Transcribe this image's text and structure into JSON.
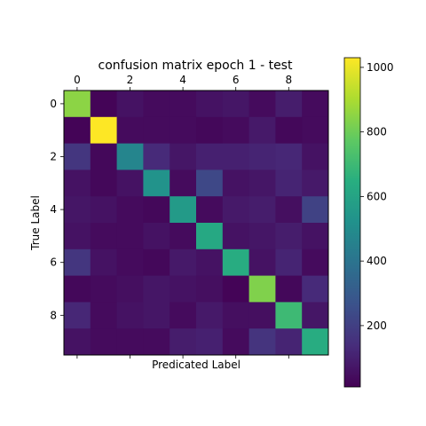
{
  "chart_data": {
    "type": "heatmap",
    "title": "confusion matrix epoch 1 - test",
    "xlabel": "Predicated Label",
    "ylabel": "True Label",
    "x_ticks": [
      "0",
      "2",
      "4",
      "6",
      "8"
    ],
    "x_tick_values": [
      0,
      2,
      4,
      6,
      8
    ],
    "y_ticks": [
      "0",
      "2",
      "4",
      "6",
      "8"
    ],
    "y_tick_values": [
      0,
      2,
      4,
      6,
      8
    ],
    "x_tick_position": "top",
    "colormap": "viridis",
    "colorbar": {
      "min": 10,
      "max": 1030,
      "ticks": [
        200,
        400,
        600,
        800,
        1000
      ],
      "tick_labels": [
        "200",
        "400",
        "600",
        "800",
        "1000"
      ]
    },
    "matrix": [
      [
        850,
        20,
        60,
        40,
        40,
        60,
        70,
        40,
        90,
        40
      ],
      [
        20,
        1030,
        40,
        40,
        40,
        30,
        40,
        80,
        30,
        40
      ],
      [
        170,
        30,
        470,
        130,
        70,
        100,
        100,
        110,
        120,
        60
      ],
      [
        60,
        30,
        60,
        530,
        40,
        230,
        60,
        70,
        110,
        80
      ],
      [
        70,
        60,
        40,
        30,
        560,
        40,
        80,
        90,
        50,
        210
      ],
      [
        60,
        40,
        40,
        60,
        40,
        620,
        60,
        70,
        90,
        60
      ],
      [
        170,
        60,
        40,
        30,
        80,
        60,
        640,
        60,
        110,
        40
      ],
      [
        30,
        40,
        50,
        70,
        60,
        50,
        20,
        830,
        30,
        130
      ],
      [
        120,
        40,
        60,
        70,
        40,
        80,
        50,
        50,
        700,
        70
      ],
      [
        60,
        40,
        40,
        40,
        90,
        100,
        40,
        160,
        110,
        640
      ]
    ]
  }
}
